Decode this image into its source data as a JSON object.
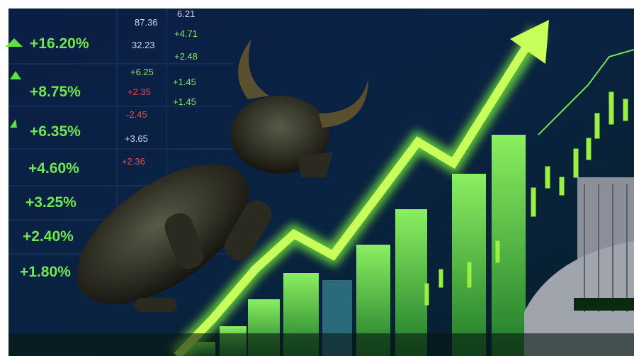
{
  "gains": [
    "+16.20%",
    "+8.75%",
    "+6.35%",
    "+4.60%",
    "+3.25%",
    "+2.40%",
    "+1.80%"
  ],
  "ticker_column_1": [
    "87.36",
    "32.23",
    "+6.25",
    "+2.35",
    "-2.45",
    "+3.65",
    "+2.36"
  ],
  "ticker_column_2": [
    "6.21",
    "+4.71",
    "+2.48",
    "+1.45",
    "+1.45"
  ]
}
